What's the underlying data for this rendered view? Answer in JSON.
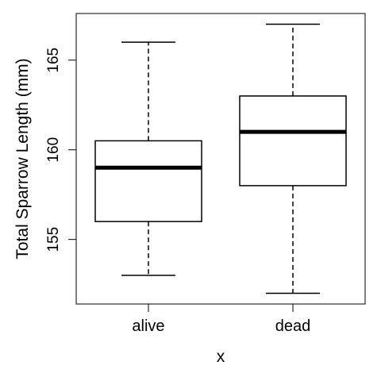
{
  "chart_data": {
    "type": "box",
    "title": "",
    "xlabel": "x",
    "ylabel": "Total Sparrow Length (mm)",
    "categories": [
      "alive",
      "dead"
    ],
    "boxes": [
      {
        "category": "alive",
        "min": 153,
        "q1": 156,
        "median": 159,
        "q3": 160.5,
        "max": 166
      },
      {
        "category": "dead",
        "min": 152,
        "q1": 158,
        "median": 161,
        "q3": 163,
        "max": 167
      }
    ],
    "yticks": [
      155,
      160,
      165
    ],
    "ylim": [
      151.4,
      167.6
    ],
    "grid": false,
    "legend": "none"
  }
}
